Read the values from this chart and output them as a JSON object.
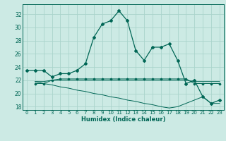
{
  "xlabel": "Humidex (Indice chaleur)",
  "bg_color": "#cceae4",
  "grid_color": "#aad4cc",
  "line_color": "#006655",
  "xlim": [
    -0.5,
    23.5
  ],
  "ylim": [
    17.5,
    33.5
  ],
  "xticks": [
    0,
    1,
    2,
    3,
    4,
    5,
    6,
    7,
    8,
    9,
    10,
    11,
    12,
    13,
    14,
    15,
    16,
    17,
    18,
    19,
    20,
    21,
    22,
    23
  ],
  "yticks": [
    18,
    20,
    22,
    24,
    26,
    28,
    30,
    32
  ],
  "series1_x": [
    0,
    1,
    2,
    3,
    4,
    5,
    6,
    7,
    8,
    9,
    10,
    11,
    12,
    13,
    14,
    15,
    16,
    17,
    18,
    19,
    20,
    21,
    22,
    23
  ],
  "series1_y": [
    23.5,
    23.5,
    23.5,
    22.5,
    23.0,
    23.0,
    23.5,
    24.5,
    28.5,
    30.5,
    31.0,
    32.5,
    31.0,
    26.5,
    25.0,
    27.0,
    27.0,
    27.5,
    25.0,
    21.5,
    22.0,
    19.5,
    18.5,
    19.0
  ],
  "series2_x": [
    1,
    2,
    3,
    4,
    5,
    6,
    7,
    8,
    9,
    10,
    11,
    12,
    13,
    14,
    15,
    16,
    17,
    18,
    19,
    20,
    21,
    22,
    23
  ],
  "series2_y": [
    21.5,
    21.5,
    22.0,
    22.2,
    22.2,
    22.2,
    22.2,
    22.2,
    22.2,
    22.2,
    22.2,
    22.2,
    22.2,
    22.2,
    22.2,
    22.2,
    22.2,
    22.2,
    22.2,
    21.5,
    21.5,
    21.5,
    21.5
  ],
  "series3_x": [
    1,
    2,
    3,
    4,
    5,
    6,
    7,
    8,
    9,
    10,
    11,
    12,
    13,
    14,
    15,
    16,
    17,
    18,
    19,
    20,
    21,
    22,
    23
  ],
  "series3_y": [
    21.8,
    21.8,
    22.0,
    22.0,
    22.0,
    22.0,
    22.0,
    22.0,
    22.0,
    22.0,
    22.0,
    22.0,
    22.0,
    22.0,
    22.0,
    22.0,
    22.0,
    22.0,
    22.0,
    21.8,
    21.8,
    21.8,
    21.8
  ],
  "series4_x": [
    1,
    2,
    3,
    4,
    5,
    6,
    7,
    8,
    9,
    10,
    11,
    12,
    13,
    14,
    15,
    16,
    17,
    18,
    19,
    20,
    21,
    22,
    23
  ],
  "series4_y": [
    21.8,
    21.5,
    21.3,
    21.0,
    20.8,
    20.5,
    20.3,
    20.0,
    19.8,
    19.5,
    19.3,
    19.0,
    18.8,
    18.5,
    18.3,
    18.0,
    17.8,
    18.0,
    18.5,
    19.0,
    19.5,
    18.5,
    18.5
  ]
}
